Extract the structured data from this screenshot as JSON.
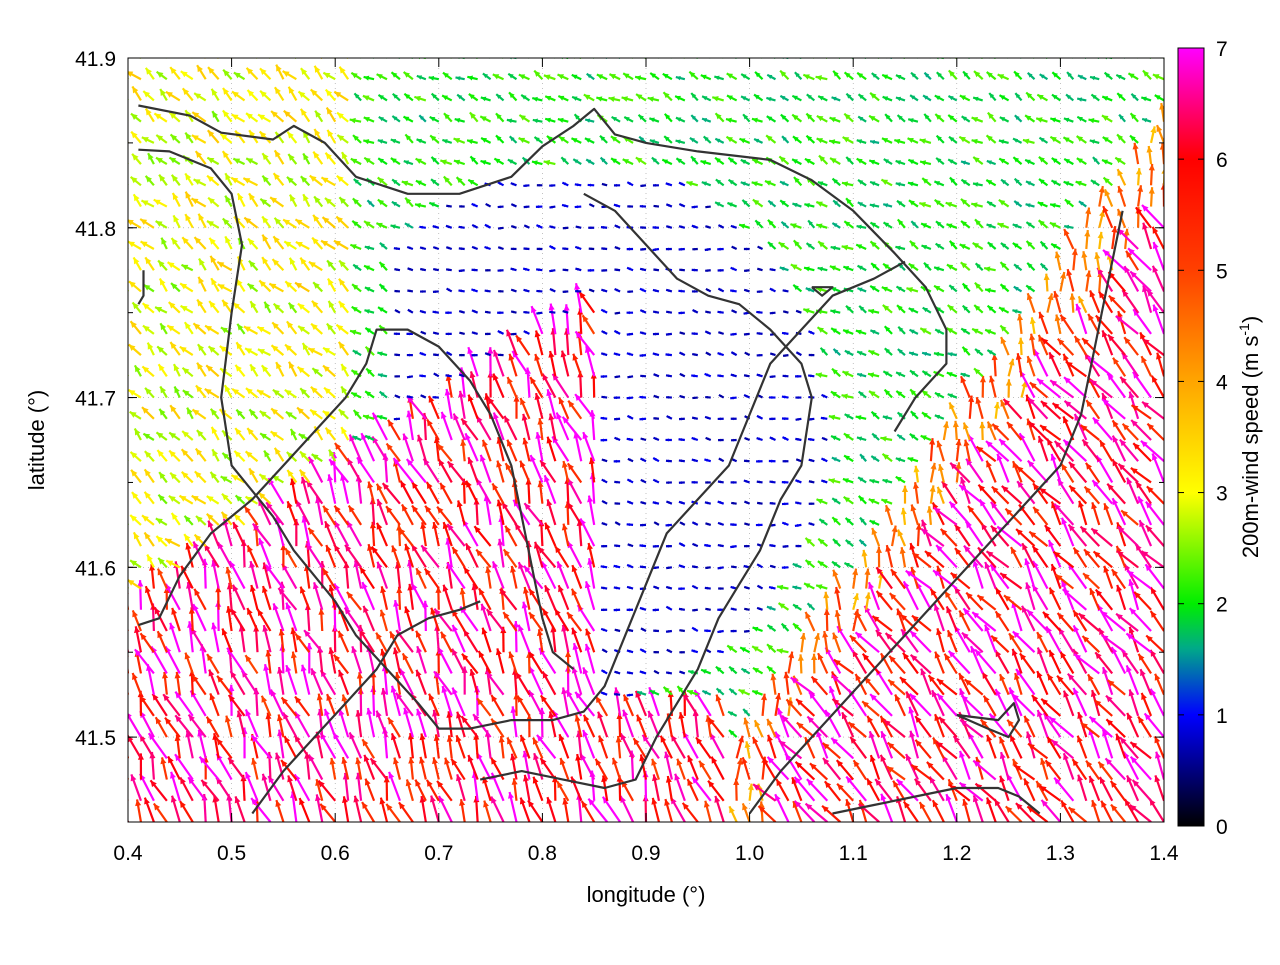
{
  "chart_data": {
    "type": "vector-field",
    "xlabel": "longitude (°)",
    "ylabel": "latitude (°)",
    "xlim": [
      0.4,
      1.4
    ],
    "ylim": [
      41.45,
      41.9
    ],
    "x_ticks": [
      "0.4",
      "0.5",
      "0.6",
      "0.7",
      "0.8",
      "0.9",
      "1.0",
      "1.1",
      "1.2",
      "1.3",
      "1.4"
    ],
    "y_ticks": [
      "41.5",
      "41.6",
      "41.7",
      "41.8",
      "41.9"
    ],
    "x_tick_values": [
      0.4,
      0.5,
      0.6,
      0.7,
      0.8,
      0.9,
      1.0,
      1.1,
      1.2,
      1.3,
      1.4
    ],
    "y_tick_values": [
      41.5,
      41.6,
      41.7,
      41.8,
      41.9
    ],
    "grid": true,
    "colorbar": {
      "label_main": "200m-wind speed (m s",
      "label_sup": "-1",
      "label_end": ")",
      "range": [
        0,
        7
      ],
      "ticks": [
        "0",
        "1",
        "2",
        "3",
        "4",
        "5",
        "6",
        "7"
      ],
      "tick_values": [
        0,
        1,
        2,
        3,
        4,
        5,
        6,
        7
      ],
      "stops": [
        {
          "value": 0,
          "color": "#000000"
        },
        {
          "value": 1,
          "color": "#0000ff"
        },
        {
          "value": 1.6,
          "color": "#00aa88"
        },
        {
          "value": 2,
          "color": "#00ee00"
        },
        {
          "value": 3,
          "color": "#ffff00"
        },
        {
          "value": 4,
          "color": "#ffa500"
        },
        {
          "value": 5,
          "color": "#ff4000"
        },
        {
          "value": 6,
          "color": "#ff0000"
        },
        {
          "value": 7,
          "color": "#ff00ff"
        }
      ]
    },
    "wind_field": {
      "lon_step": 0.0125,
      "lat_step": 0.0125,
      "regions": [
        {
          "name": "northwest",
          "speed": 3.0,
          "direction_deg": 135
        },
        {
          "name": "north-central",
          "speed": 2.0,
          "direction_deg": 150
        },
        {
          "name": "central-basin",
          "speed": 0.8,
          "direction_deg": 170
        },
        {
          "name": "southwest",
          "speed": 6.2,
          "direction_deg": 110
        },
        {
          "name": "southeast",
          "speed": 6.3,
          "direction_deg": 125
        },
        {
          "name": "east-slope",
          "speed": 4.5,
          "direction_deg": 95
        }
      ]
    },
    "contours": [
      [
        [
          0.41,
          41.872
        ],
        [
          0.46,
          41.866
        ],
        [
          0.49,
          41.856
        ],
        [
          0.54,
          41.852
        ],
        [
          0.56,
          41.86
        ],
        [
          0.59,
          41.85
        ],
        [
          0.62,
          41.83
        ],
        [
          0.67,
          41.82
        ],
        [
          0.72,
          41.82
        ],
        [
          0.77,
          41.83
        ],
        [
          0.8,
          41.848
        ],
        [
          0.83,
          41.86
        ],
        [
          0.85,
          41.87
        ],
        [
          0.87,
          41.855
        ],
        [
          0.9,
          41.85
        ],
        [
          0.95,
          41.845
        ],
        [
          1.02,
          41.84
        ],
        [
          1.06,
          41.828
        ],
        [
          1.1,
          41.81
        ],
        [
          1.14,
          41.785
        ],
        [
          1.17,
          41.765
        ],
        [
          1.19,
          41.74
        ],
        [
          1.19,
          41.72
        ],
        [
          1.16,
          41.7
        ],
        [
          1.14,
          41.68
        ]
      ],
      [
        [
          0.41,
          41.846
        ],
        [
          0.44,
          41.845
        ],
        [
          0.48,
          41.835
        ],
        [
          0.5,
          41.82
        ],
        [
          0.51,
          41.79
        ],
        [
          0.5,
          41.75
        ],
        [
          0.49,
          41.7
        ],
        [
          0.5,
          41.66
        ],
        [
          0.52,
          41.645
        ],
        [
          0.54,
          41.63
        ],
        [
          0.56,
          41.61
        ],
        [
          0.6,
          41.58
        ],
        [
          0.62,
          41.56
        ],
        [
          0.65,
          41.54
        ],
        [
          0.68,
          41.52
        ],
        [
          0.7,
          41.505
        ],
        [
          0.73,
          41.505
        ],
        [
          0.77,
          41.51
        ],
        [
          0.81,
          41.51
        ],
        [
          0.84,
          41.515
        ],
        [
          0.86,
          41.53
        ],
        [
          0.88,
          41.56
        ],
        [
          0.9,
          41.59
        ],
        [
          0.92,
          41.62
        ],
        [
          0.95,
          41.64
        ],
        [
          0.98,
          41.66
        ],
        [
          1.0,
          41.69
        ],
        [
          1.02,
          41.72
        ],
        [
          1.05,
          41.74
        ],
        [
          1.08,
          41.76
        ],
        [
          1.12,
          41.77
        ],
        [
          1.15,
          41.78
        ]
      ],
      [
        [
          0.41,
          41.566
        ],
        [
          0.43,
          41.57
        ],
        [
          0.45,
          41.595
        ],
        [
          0.48,
          41.62
        ],
        [
          0.52,
          41.64
        ],
        [
          0.55,
          41.66
        ],
        [
          0.58,
          41.68
        ],
        [
          0.61,
          41.7
        ],
        [
          0.63,
          41.72
        ],
        [
          0.64,
          41.74
        ],
        [
          0.67,
          41.74
        ],
        [
          0.7,
          41.73
        ],
        [
          0.73,
          41.71
        ],
        [
          0.75,
          41.69
        ],
        [
          0.77,
          41.66
        ],
        [
          0.78,
          41.63
        ],
        [
          0.79,
          41.6
        ],
        [
          0.8,
          41.57
        ],
        [
          0.81,
          41.55
        ],
        [
          0.83,
          41.54
        ]
      ],
      [
        [
          0.84,
          41.82
        ],
        [
          0.87,
          41.81
        ],
        [
          0.9,
          41.79
        ],
        [
          0.93,
          41.77
        ],
        [
          0.96,
          41.76
        ],
        [
          0.99,
          41.755
        ],
        [
          1.02,
          41.74
        ],
        [
          1.05,
          41.72
        ],
        [
          1.06,
          41.7
        ],
        [
          1.05,
          41.66
        ],
        [
          1.03,
          41.64
        ],
        [
          1.01,
          41.61
        ],
        [
          0.99,
          41.59
        ],
        [
          0.97,
          41.57
        ],
        [
          0.95,
          41.54
        ],
        [
          0.93,
          41.52
        ],
        [
          0.91,
          41.5
        ],
        [
          0.89,
          41.475
        ],
        [
          0.86,
          41.47
        ],
        [
          0.82,
          41.475
        ],
        [
          0.78,
          41.48
        ],
        [
          0.74,
          41.475
        ]
      ],
      [
        [
          0.41,
          41.755
        ],
        [
          0.415,
          41.76
        ],
        [
          0.415,
          41.775
        ]
      ],
      [
        [
          1.06,
          41.765
        ],
        [
          1.08,
          41.765
        ],
        [
          1.07,
          41.76
        ],
        [
          1.06,
          41.765
        ]
      ],
      [
        [
          1.2,
          41.513
        ],
        [
          1.24,
          41.51
        ],
        [
          1.255,
          41.52
        ],
        [
          1.26,
          41.51
        ],
        [
          1.25,
          41.5
        ],
        [
          1.23,
          41.505
        ],
        [
          1.2,
          41.513
        ]
      ],
      [
        [
          1.0,
          41.455
        ],
        [
          1.03,
          41.48
        ],
        [
          1.06,
          41.5
        ],
        [
          1.09,
          41.52
        ],
        [
          1.12,
          41.54
        ],
        [
          1.15,
          41.56
        ],
        [
          1.18,
          41.58
        ],
        [
          1.21,
          41.6
        ],
        [
          1.24,
          41.62
        ],
        [
          1.27,
          41.64
        ],
        [
          1.3,
          41.66
        ],
        [
          1.32,
          41.69
        ],
        [
          1.33,
          41.72
        ],
        [
          1.34,
          41.75
        ],
        [
          1.35,
          41.78
        ],
        [
          1.36,
          41.81
        ]
      ],
      [
        [
          1.08,
          41.455
        ],
        [
          1.12,
          41.46
        ],
        [
          1.16,
          41.465
        ],
        [
          1.2,
          41.47
        ],
        [
          1.24,
          41.47
        ],
        [
          1.26,
          41.465
        ],
        [
          1.28,
          41.455
        ]
      ],
      [
        [
          0.52,
          41.455
        ],
        [
          0.55,
          41.48
        ],
        [
          0.58,
          41.5
        ],
        [
          0.61,
          41.52
        ],
        [
          0.64,
          41.54
        ],
        [
          0.66,
          41.56
        ],
        [
          0.69,
          41.57
        ],
        [
          0.72,
          41.575
        ],
        [
          0.74,
          41.58
        ]
      ]
    ]
  }
}
